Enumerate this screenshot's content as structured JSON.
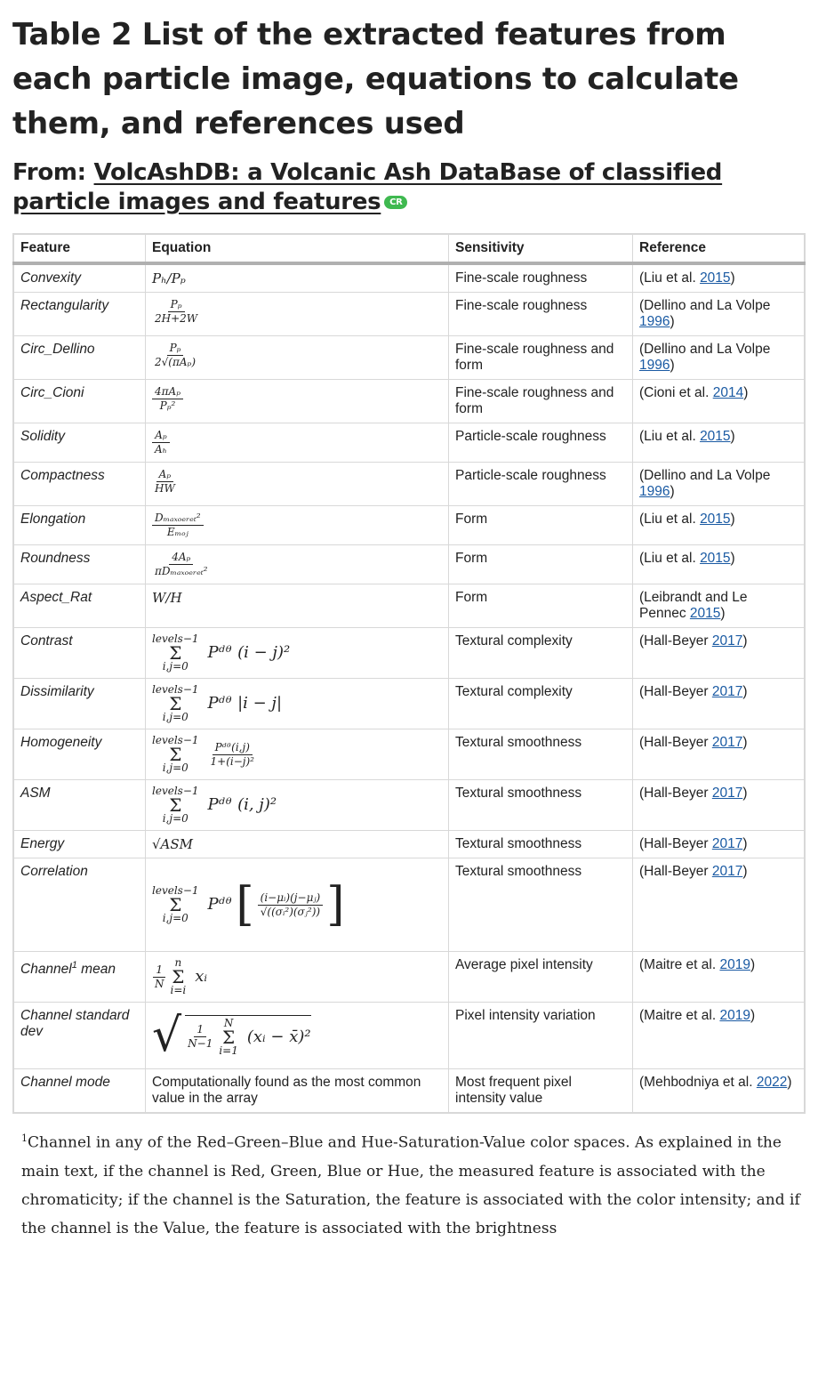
{
  "title": "Table 2 List of the extracted features from each particle image, equations to calculate them, and references used",
  "from_label": "From:",
  "source_title": "VolcAshDB: a Volcanic Ash DataBase of classified particle images and features",
  "badge": "CR",
  "headers": [
    "Feature",
    "Equation",
    "Sensitivity",
    "Reference"
  ],
  "rows": [
    {
      "feature": "Convexity",
      "sensitivity": "Fine-scale roughness",
      "ref_pre": "(Liu et al. ",
      "ref_year": "2015",
      "ref_post": ")"
    },
    {
      "feature": "Rectangularity",
      "sensitivity": "Fine-scale roughness",
      "ref_pre": "(Dellino and La Volpe ",
      "ref_year": "1996",
      "ref_post": ")"
    },
    {
      "feature": "Circ_Dellino",
      "sensitivity": "Fine-scale roughness and form",
      "ref_pre": "(Dellino and La Volpe ",
      "ref_year": "1996",
      "ref_post": ")"
    },
    {
      "feature": "Circ_Cioni",
      "sensitivity": "Fine-scale roughness and form",
      "ref_pre": "(Cioni et al. ",
      "ref_year": "2014",
      "ref_post": ")"
    },
    {
      "feature": "Solidity",
      "sensitivity": "Particle-scale roughness",
      "ref_pre": "(Liu et al. ",
      "ref_year": "2015",
      "ref_post": ")"
    },
    {
      "feature": "Compactness",
      "sensitivity": "Particle-scale roughness",
      "ref_pre": "(Dellino and La Volpe ",
      "ref_year": "1996",
      "ref_post": ")"
    },
    {
      "feature": "Elongation",
      "sensitivity": "Form",
      "ref_pre": "(Liu et al. ",
      "ref_year": "2015",
      "ref_post": ")"
    },
    {
      "feature": "Roundness",
      "sensitivity": "Form",
      "ref_pre": "(Liu et al. ",
      "ref_year": "2015",
      "ref_post": ")"
    },
    {
      "feature": "Aspect_Rat",
      "sensitivity": "Form",
      "ref_pre": "(Leibrandt and Le Pennec ",
      "ref_year": "2015",
      "ref_post": ")"
    },
    {
      "feature": "Contrast",
      "sensitivity": "Textural complexity",
      "ref_pre": "(Hall-Beyer ",
      "ref_year": "2017",
      "ref_post": ")"
    },
    {
      "feature": "Dissimilarity",
      "sensitivity": "Textural complexity",
      "ref_pre": "(Hall-Beyer ",
      "ref_year": "2017",
      "ref_post": ")"
    },
    {
      "feature": "Homogeneity",
      "sensitivity": "Textural smoothness",
      "ref_pre": "(Hall-Beyer ",
      "ref_year": "2017",
      "ref_post": ")"
    },
    {
      "feature": "ASM",
      "sensitivity": "Textural smoothness",
      "ref_pre": "(Hall-Beyer ",
      "ref_year": "2017",
      "ref_post": ")"
    },
    {
      "feature": "Energy",
      "sensitivity": "Textural smoothness",
      "ref_pre": "(Hall-Beyer ",
      "ref_year": "2017",
      "ref_post": ")"
    },
    {
      "feature": "Correlation",
      "sensitivity": "Textural smoothness",
      "ref_pre": "(Hall-Beyer ",
      "ref_year": "2017",
      "ref_post": ")"
    },
    {
      "feature_pre": "Channel",
      "feature_sup": "1",
      "feature_post": " mean",
      "sensitivity": "Average pixel intensity",
      "ref_pre": "(Maitre et al. ",
      "ref_year": "2019",
      "ref_post": ")"
    },
    {
      "feature": "Channel standard dev",
      "sensitivity": "Pixel intensity variation",
      "ref_pre": "(Maitre et al. ",
      "ref_year": "2019",
      "ref_post": ")"
    },
    {
      "feature": "Channel mode",
      "equation": "Computationally found as the most common value in the array",
      "sensitivity": "Most frequent pixel intensity value",
      "ref_pre": "(Mehbodniya et al. ",
      "ref_year": "2022",
      "ref_post": ")"
    }
  ],
  "eq": {
    "convexity": "Pₕ/Pₚ",
    "rect_num": "Pₚ",
    "rect_den": "2H+2W",
    "cd_num": "Pₚ",
    "cd_den": "2√(πAₚ)",
    "cc_num": "4πAₚ",
    "cc_den": "Pₚ²",
    "sol_num": "Aₚ",
    "sol_den": "Aₕ",
    "comp_num": "Aₚ",
    "comp_den": "HW",
    "elong_num": "Dₘₐₓₒₑᵣₑₜ²",
    "elong_den": "Eₘₒⱼ",
    "round_num": "4Aₚ",
    "round_den": "πDₘₐₓₒₑᵣₑₜ²",
    "aspect": "W/H",
    "sum_top": "levels−1",
    "sum_bot": "i,j=0",
    "sigma": "Σ",
    "contrast_body": "Pᵈᶿ (i − j)²",
    "dissim_body": "Pᵈᶿ |i − j|",
    "homog_num": "Pᵈᶿ(i,j)",
    "homog_den": "1+(i−j)²",
    "asm_body": "Pᵈᶿ (i, j)²",
    "energy": "√ASM",
    "corr_pre": "Pᵈᶿ",
    "corr_num": "(i−μᵢ)(j−μⱼ)",
    "corr_den": "√((σᵢ²)(σⱼ²))",
    "mean_num": "1",
    "mean_den": "N",
    "mean_top": "n",
    "mean_bot": "i=i",
    "mean_body": "xᵢ",
    "sd_num": "1",
    "sd_den": "N−1",
    "sd_top": "N",
    "sd_bot": "i=1",
    "sd_body": "(xᵢ − x̄)²"
  },
  "footnote_sup": "1",
  "footnote": "Channel in any of the Red–Green–Blue and Hue-Saturation-Value color spaces. As explained in the main text, if the channel is Red, Green, Blue or Hue, the measured feature is associated with the chromaticity; if the channel is the Saturation, the feature is associated with the color intensity; and if the channel is the Value, the feature is associated with the brightness"
}
